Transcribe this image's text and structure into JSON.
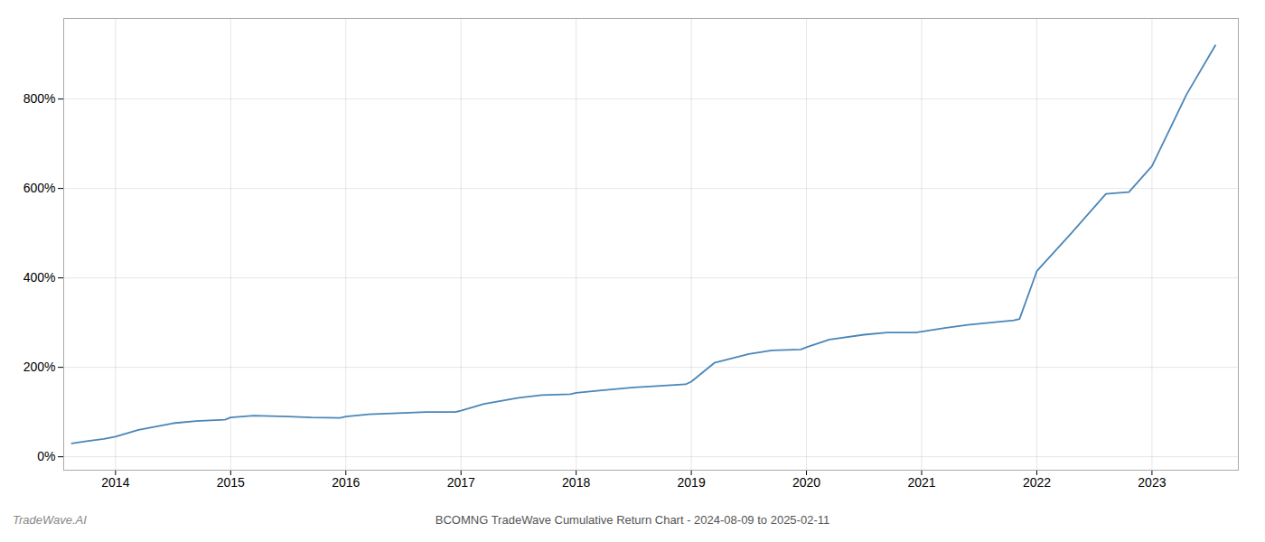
{
  "chart_data": {
    "type": "line",
    "title": "BCOMNG TradeWave Cumulative Return Chart - 2024-08-09 to 2025-02-11",
    "annotations": [
      "TradeWave.AI"
    ],
    "color": "#4a86b8",
    "grid": true,
    "xlim": [
      2013.55,
      2023.75
    ],
    "xticks": [
      2014,
      2015,
      2016,
      2017,
      2018,
      2019,
      2020,
      2021,
      2022,
      2023
    ],
    "ylim": [
      -30,
      980
    ],
    "yticks": [
      {
        "value": 0,
        "label": "0%"
      },
      {
        "value": 200,
        "label": "200%"
      },
      {
        "value": 400,
        "label": "400%"
      },
      {
        "value": 600,
        "label": "600%"
      },
      {
        "value": 800,
        "label": "800%"
      }
    ],
    "x": [
      2013.62,
      2013.75,
      2013.9,
      2014.0,
      2014.2,
      2014.5,
      2014.7,
      2014.95,
      2015.0,
      2015.2,
      2015.5,
      2015.7,
      2015.95,
      2016.0,
      2016.2,
      2016.5,
      2016.7,
      2016.95,
      2017.0,
      2017.2,
      2017.5,
      2017.7,
      2017.95,
      2018.0,
      2018.2,
      2018.5,
      2018.7,
      2018.95,
      2019.0,
      2019.2,
      2019.5,
      2019.7,
      2019.95,
      2020.0,
      2020.2,
      2020.5,
      2020.7,
      2020.95,
      2021.0,
      2021.2,
      2021.4,
      2021.6,
      2021.8,
      2021.85,
      2022.0,
      2022.3,
      2022.6,
      2022.8,
      2023.0,
      2023.3,
      2023.55
    ],
    "values": [
      30,
      35,
      40,
      45,
      60,
      75,
      80,
      83,
      88,
      92,
      90,
      88,
      87,
      90,
      95,
      98,
      100,
      100,
      103,
      118,
      132,
      138,
      140,
      143,
      148,
      155,
      158,
      162,
      168,
      210,
      230,
      238,
      240,
      245,
      262,
      273,
      278,
      278,
      280,
      288,
      295,
      300,
      305,
      308,
      415,
      500,
      588,
      592,
      650,
      810,
      920
    ]
  }
}
